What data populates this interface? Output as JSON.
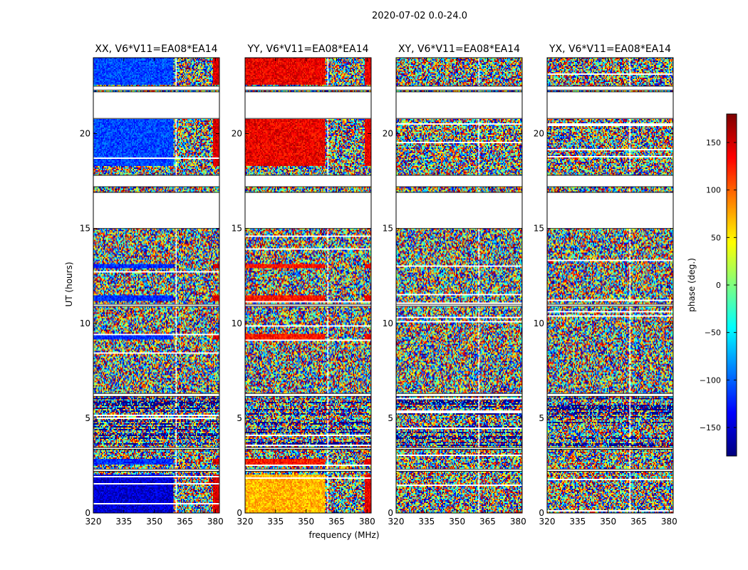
{
  "figure": {
    "suptitle": "2020-07-02 0.0-24.0"
  },
  "chart_data": {
    "type": "heatmap",
    "xlabel": "frequency (MHz)",
    "ylabel": "UT (hours)",
    "xlim": [
      320,
      382
    ],
    "ylim": [
      0,
      24
    ],
    "xticks": [
      320,
      335,
      350,
      365,
      380
    ],
    "yticks": [
      0,
      5,
      10,
      15,
      20
    ],
    "panels": [
      {
        "title": "XX, V6*V11=EA08*EA14",
        "coherent_phase_low": -150,
        "coherent_phase_high": 160,
        "coherent": true
      },
      {
        "title": "YY, V6*V11=EA08*EA14",
        "coherent_phase_low": 70,
        "coherent_phase_high": 130,
        "coherent": true
      },
      {
        "title": "XY, V6*V11=EA08*EA14",
        "coherent": false
      },
      {
        "title": "YX, V6*V11=EA08*EA14",
        "coherent": false
      }
    ],
    "colorbar": {
      "label": "phase (deg.)",
      "range": [
        -180,
        180
      ],
      "ticks": [
        150,
        100,
        50,
        0,
        -50,
        -100,
        -150
      ],
      "tick_labels": [
        "150",
        "100",
        "50",
        "0",
        "−50",
        "−100",
        "−150"
      ],
      "colormap": "jet"
    },
    "gaps_hours": [
      [
        22.3,
        22.5
      ],
      [
        20.8,
        22.2
      ],
      [
        17.2,
        17.8
      ],
      [
        15.0,
        16.9
      ],
      [
        10.9,
        11.0
      ],
      [
        6.15,
        6.3
      ],
      [
        3.35,
        3.45
      ],
      [
        2.2,
        2.3
      ]
    ],
    "clean_line_freq_MHz": 360.5
  }
}
